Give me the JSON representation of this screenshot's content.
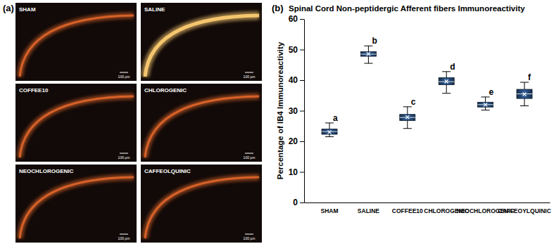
{
  "figure": {
    "panel_a": {
      "label": "(a)",
      "images": [
        {
          "label": "SHAM",
          "scale_bar": "100 µm"
        },
        {
          "label": "SALINE",
          "scale_bar": "100 µm"
        },
        {
          "label": "COFFEE10",
          "scale_bar": "100 µm"
        },
        {
          "label": "CHLOROGENIC",
          "scale_bar": "100 µm"
        },
        {
          "label": "NEOCHLOROGENIC",
          "scale_bar": "100 µm"
        },
        {
          "label": "CAFFEOLQUINIC",
          "scale_bar": "100 µm"
        }
      ]
    }
  },
  "chart_data": {
    "type": "box",
    "panel_label": "(b)",
    "title": "Spinal Cord Non-peptidergic Afferent fibers Immunoreactivity",
    "y_label": "Percentage of IB4  Immunoreactivity",
    "categories": [
      "SHAM",
      "SALINE",
      "COFFEE10",
      "CHLOROGENIC",
      "NEOCHLOROGENIC",
      "CAFFEOYLQUINIC"
    ],
    "min": [
      21.5,
      45.5,
      24.2,
      35.7,
      30.2,
      31.6
    ],
    "q1": [
      22.3,
      47.8,
      26.8,
      38.5,
      31.2,
      34.0
    ],
    "median": [
      23.2,
      48.5,
      27.8,
      39.5,
      32.0,
      35.5
    ],
    "q3": [
      24.0,
      49.3,
      28.8,
      40.8,
      32.8,
      37.0
    ],
    "max": [
      26.0,
      51.2,
      31.3,
      42.8,
      34.5,
      39.3
    ],
    "mean": [
      23.0,
      48.6,
      27.9,
      39.6,
      32.0,
      35.4
    ],
    "annotations": [
      "a",
      "b",
      "c",
      "d",
      "e",
      "f"
    ],
    "color": "#1f3d63",
    "ylim": [
      0,
      60
    ],
    "yticks": [
      0,
      10,
      20,
      30,
      40,
      50,
      60
    ],
    "grid": false
  }
}
